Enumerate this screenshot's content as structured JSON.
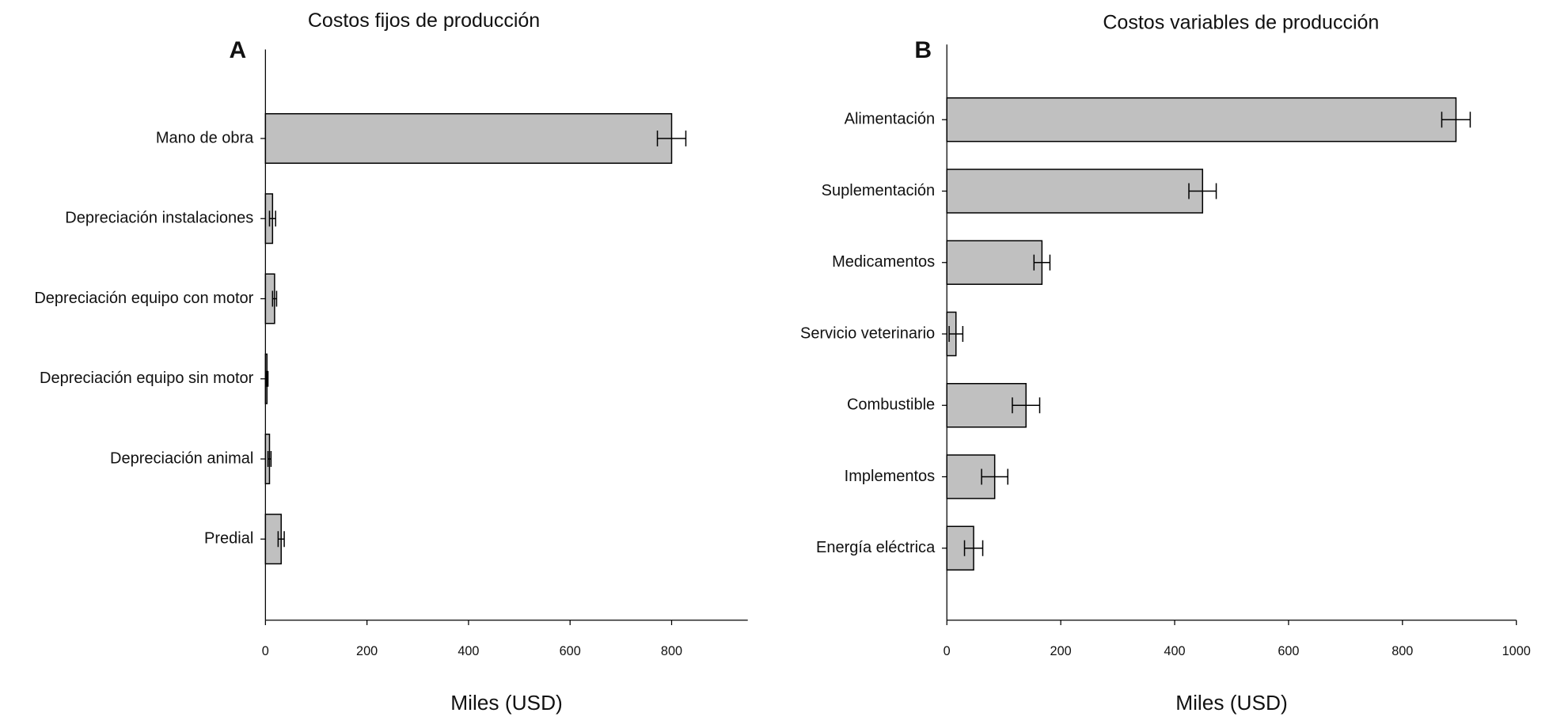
{
  "chart_data": [
    {
      "type": "bar",
      "orientation": "horizontal",
      "title": "Costos fijos de producción",
      "panel_label": "A",
      "categories": [
        "Mano de obra",
        "Depreciación instalaciones",
        "Depreciación equipo con motor",
        "Depreciación equipo sin motor",
        "Depreciación animal",
        "Predial"
      ],
      "values": [
        800,
        14,
        18,
        3,
        8,
        31
      ],
      "errors": [
        28,
        6,
        4,
        2,
        3,
        6
      ],
      "color": "#c0c0c0",
      "xlabel": "Miles (USD)",
      "xlim": [
        0,
        950
      ],
      "xticks": [
        0,
        200,
        400,
        600,
        800
      ]
    },
    {
      "type": "bar",
      "orientation": "horizontal",
      "title": "Costos variables de producción",
      "panel_label": "B",
      "categories": [
        "Alimentación",
        "Suplementación",
        "Medicamentos",
        "Servicio veterinario",
        "Combustible",
        "Implementos",
        "Energía eléctrica"
      ],
      "values": [
        894,
        449,
        167,
        16,
        139,
        84,
        47
      ],
      "errors": [
        25,
        24,
        14,
        12,
        24,
        23,
        16
      ],
      "color": "#c0c0c0",
      "xlabel": "Miles (USD)",
      "xlim": [
        0,
        1000
      ],
      "xticks": [
        0,
        200,
        400,
        600,
        800,
        1000
      ]
    }
  ]
}
